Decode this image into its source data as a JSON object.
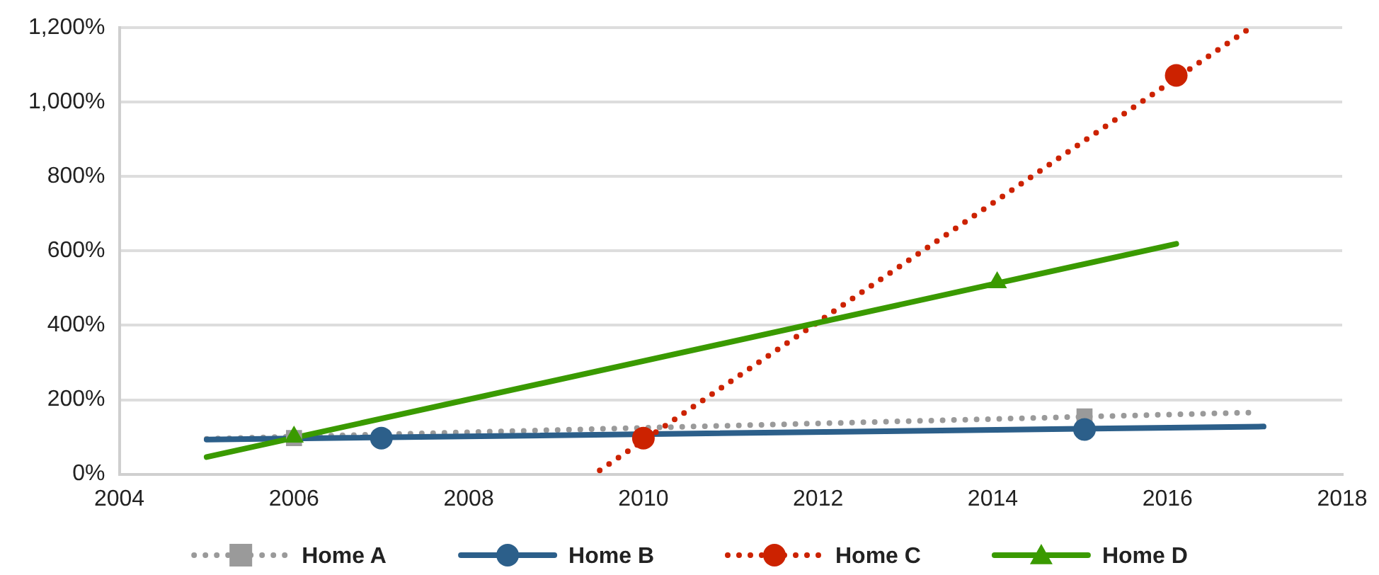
{
  "chart_data": {
    "type": "line",
    "xlim": [
      2004,
      2018
    ],
    "xticks": [
      2004,
      2006,
      2008,
      2010,
      2012,
      2014,
      2016,
      2018
    ],
    "ylim": [
      0,
      1200
    ],
    "yticks": [
      {
        "value": 0,
        "label": "0%"
      },
      {
        "value": 200,
        "label": "200%"
      },
      {
        "value": 400,
        "label": "400%"
      },
      {
        "value": 600,
        "label": "600%"
      },
      {
        "value": 800,
        "label": "800%"
      },
      {
        "value": 1000,
        "label": "1,000%"
      },
      {
        "value": 1200,
        "label": "1,200%"
      }
    ],
    "grid": "y",
    "legend": "bottom",
    "series": [
      {
        "color": "#9a9a9a",
        "line_style": "dotted",
        "marker": "none",
        "x": [
          2005,
          2017
        ],
        "values": [
          95,
          166
        ]
      },
      {
        "color": "#2c5f8a",
        "line_style": "solid",
        "marker": "none",
        "x": [
          2005,
          2017.1
        ],
        "values": [
          93,
          128
        ]
      },
      {
        "color": "#cc2200",
        "line_style": "dotted",
        "marker": "none",
        "x": [
          2009.5,
          2016.95
        ],
        "values": [
          10,
          1200
        ]
      },
      {
        "color": "#3a9a00",
        "line_style": "solid",
        "marker": "none",
        "x": [
          2005,
          2016.1
        ],
        "values": [
          46,
          619
        ]
      },
      {
        "type": "scatter",
        "name": "Home A",
        "color": "#9a9a9a",
        "line_style": "dotted",
        "marker": "square",
        "x": [
          2006,
          2015.05
        ],
        "values": [
          97,
          155
        ]
      },
      {
        "type": "scatter",
        "name": "Home B",
        "color": "#2c5f8a",
        "line_style": "solid",
        "marker": "circle",
        "x": [
          2007,
          2015.05
        ],
        "values": [
          97,
          120
        ]
      },
      {
        "type": "scatter",
        "name": "Home C",
        "color": "#cc2200",
        "line_style": "dotted",
        "marker": "circle",
        "x": [
          2010,
          2016.1
        ],
        "values": [
          97,
          1072
        ]
      },
      {
        "type": "scatter",
        "name": "Home D",
        "color": "#3a9a00",
        "line_style": "solid",
        "marker": "triangle",
        "x": [
          2006,
          2014.05
        ],
        "values": [
          100,
          515
        ]
      }
    ]
  }
}
